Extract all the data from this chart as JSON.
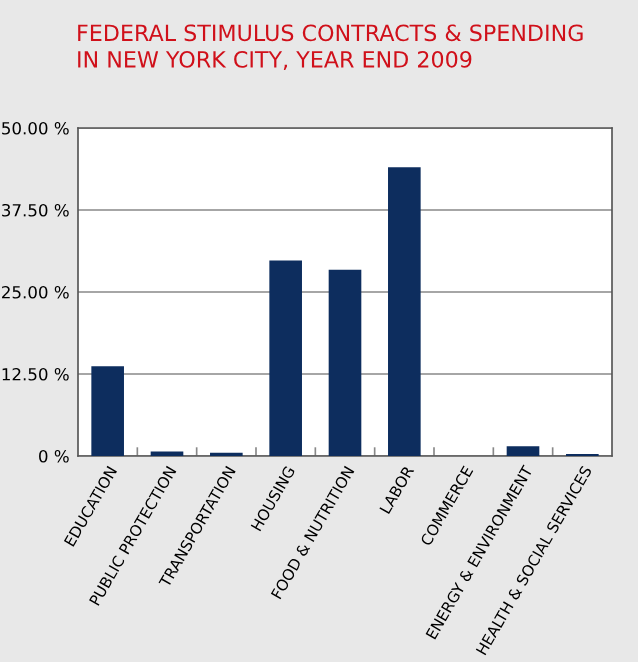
{
  "chart_data": {
    "type": "bar",
    "title": "FEDERAL STIMULUS CONTRACTS & SPENDING\nIN NEW YORK CITY, YEAR END 2009",
    "categories": [
      "EDUCATION",
      "PUBLIC PROTECTION",
      "TRANSPORTATION",
      "HOUSING",
      "FOOD & NUTRITION",
      "LABOR",
      "COMMERCE",
      "ENERGY & ENVIRONMENT",
      "HEALTH & SOCIAL SERVICES"
    ],
    "values": [
      13.7,
      0.7,
      0.5,
      29.8,
      28.4,
      44.0,
      0,
      1.5,
      0.3
    ],
    "color": "#0d2d5e",
    "ylim": [
      0,
      50
    ],
    "yticks": [
      {
        "value": 0,
        "label": "0 %"
      },
      {
        "value": 12.5,
        "label": "12.50 %"
      },
      {
        "value": 25,
        "label": "25.00 %"
      },
      {
        "value": 37.5,
        "label": "37.50 %"
      },
      {
        "value": 50,
        "label": "50.00 %"
      }
    ],
    "grid": "y"
  }
}
